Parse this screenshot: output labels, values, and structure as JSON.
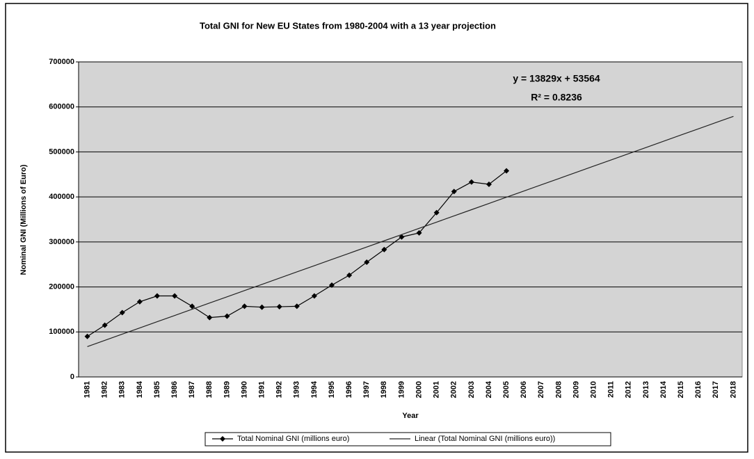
{
  "chart_data": {
    "type": "line",
    "title": "Total GNI for New EU States from 1980-2004 with a 13 year projection",
    "x_label": "Year",
    "y_label": "Nominal GNI (Millions of Euro)",
    "annotations": [
      "y = 13829x + 53564",
      "R² = 0.8236"
    ],
    "categories": [
      "1981",
      "1982",
      "1983",
      "1984",
      "1985",
      "1986",
      "1987",
      "1988",
      "1989",
      "1990",
      "1991",
      "1992",
      "1993",
      "1994",
      "1995",
      "1996",
      "1997",
      "1998",
      "1999",
      "2000",
      "2001",
      "2002",
      "2003",
      "2004",
      "2005",
      "2006",
      "2007",
      "2008",
      "2009",
      "2010",
      "2011",
      "2012",
      "2013",
      "2014",
      "2015",
      "2016",
      "2017",
      "2018"
    ],
    "series": [
      {
        "name": "Total Nominal GNI (millions euro)",
        "color": "#000000",
        "marker": true,
        "values": [
          90000,
          115000,
          143000,
          167000,
          180000,
          180000,
          157000,
          132000,
          135000,
          157000,
          155000,
          156000,
          157000,
          180000,
          204000,
          226000,
          255000,
          283000,
          311000,
          320000,
          365000,
          412000,
          433000,
          428000,
          458000,
          null,
          null,
          null,
          null,
          null,
          null,
          null,
          null,
          null,
          null,
          null,
          null,
          null
        ]
      },
      {
        "name": "Linear (Total Nominal GNI (millions euro))",
        "color": "#222222",
        "marker": false,
        "values": [
          67393,
          81222,
          95051,
          108880,
          122709,
          136538,
          150367,
          164196,
          178025,
          191854,
          205683,
          219512,
          233341,
          247170,
          260999,
          274828,
          288657,
          302486,
          316315,
          330144,
          343973,
          357802,
          371631,
          385460,
          399289,
          413118,
          426947,
          440776,
          454605,
          468434,
          482263,
          496092,
          509921,
          523750,
          537579,
          551408,
          565237,
          579066
        ]
      }
    ],
    "ylim": [
      0,
      700000
    ],
    "yticks": [
      0,
      100000,
      200000,
      300000,
      400000,
      500000,
      600000,
      700000
    ],
    "grid": true
  }
}
